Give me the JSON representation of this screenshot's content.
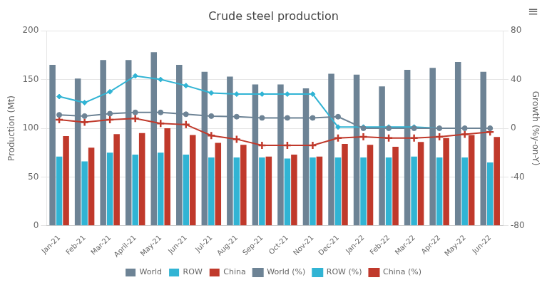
{
  "chart_data": {
    "type": "bar",
    "title": "Crude steel production",
    "categories": [
      "Jan-21",
      "Feb-21",
      "Mar-21",
      "April-21",
      "May-21",
      "Jun-21",
      "Jul-21",
      "Aug-21",
      "Sep-21",
      "Oct-21",
      "Nov-21",
      "Dec-21",
      "Jan-22",
      "Feb-22",
      "Mar-22",
      "Apr-22",
      "May-22",
      "Jun-22"
    ],
    "series": [
      {
        "name": "World",
        "type": "bar",
        "color": "#6d8395",
        "values": [
          165,
          151,
          170,
          170,
          178,
          165,
          158,
          153,
          145,
          145,
          141,
          156,
          155,
          143,
          160,
          162,
          168,
          158
        ]
      },
      {
        "name": "ROW",
        "type": "bar",
        "color": "#31b4d4",
        "values": [
          71,
          66,
          75,
          73,
          75,
          73,
          70,
          70,
          70,
          69,
          70,
          70,
          70,
          70,
          71,
          70,
          70,
          65
        ]
      },
      {
        "name": "China",
        "type": "bar",
        "color": "#c0392b",
        "values": [
          92,
          80,
          94,
          95,
          100,
          93,
          85,
          83,
          71,
          73,
          71,
          84,
          83,
          81,
          86,
          90,
          93,
          91
        ]
      },
      {
        "name": "World (%)",
        "type": "line",
        "axis": "y2",
        "color": "#6d8395",
        "marker": "circle",
        "line_style": "solid",
        "values": [
          11,
          10,
          12,
          13,
          13,
          11.5,
          10,
          9.5,
          8.5,
          8.5,
          8.5,
          9.5,
          0,
          0,
          0,
          0,
          0,
          0
        ]
      },
      {
        "name": "ROW (%)",
        "type": "line",
        "axis": "y2",
        "color": "#31b4d4",
        "marker": "diamond",
        "line_style": "solid",
        "values": [
          26,
          21,
          30,
          43,
          40,
          35,
          29,
          28,
          28,
          28,
          28,
          1,
          1,
          1,
          1,
          0,
          0,
          0
        ]
      },
      {
        "name": "China (%)",
        "type": "line",
        "axis": "y2",
        "color": "#c0392b",
        "marker": "plus",
        "line_style": "solid",
        "values": [
          7,
          5,
          7,
          8,
          4,
          3,
          -6,
          -9,
          -14,
          -14,
          -14,
          -8,
          -7,
          -8,
          -8,
          -7,
          -5,
          -3
        ]
      }
    ],
    "ylabel": "Production (Mt)",
    "y2label": "Growth (%y-on-Y)",
    "ylim": [
      0,
      200
    ],
    "yticks": [
      0,
      50,
      100,
      150,
      200
    ],
    "y2lim": [
      -80,
      80
    ],
    "y2ticks": [
      -80,
      -40,
      0,
      40,
      80
    ],
    "grid": true,
    "legend": "bottom",
    "annotations": [
      "≡"
    ]
  }
}
